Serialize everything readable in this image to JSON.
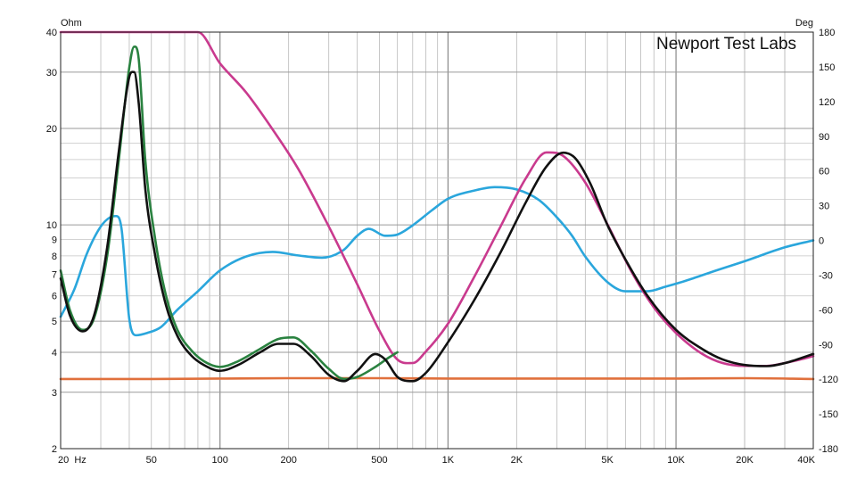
{
  "chart_data": {
    "type": "line",
    "watermark": "Newport Test Labs",
    "left_axis": {
      "unit": "Ohm",
      "scale": "log",
      "range": [
        2,
        40
      ],
      "ticks": [
        2,
        3,
        4,
        5,
        6,
        7,
        8,
        9,
        10,
        20,
        30,
        40
      ],
      "tick_labels": [
        "2",
        "3",
        "4",
        "5",
        "6",
        "7",
        "8",
        "9",
        "10",
        "20",
        "30",
        "40"
      ]
    },
    "right_axis": {
      "unit": "Deg",
      "scale": "linear",
      "range": [
        -180,
        180
      ],
      "ticks": [
        180,
        150,
        120,
        90,
        60,
        30,
        0,
        -30,
        -60,
        -90,
        -120,
        -150,
        -180
      ],
      "tick_labels": [
        "180",
        "150",
        "120",
        "90",
        "60",
        "30",
        "0",
        "-30",
        "-60",
        "-90",
        "-120",
        "-150",
        "-180"
      ]
    },
    "x_axis": {
      "scale": "log",
      "range": [
        20,
        40000
      ],
      "ticks": [
        20,
        50,
        100,
        200,
        500,
        1000,
        2000,
        5000,
        10000,
        20000,
        40000
      ],
      "tick_labels": [
        "20  Hz",
        "50",
        "100",
        "200",
        "500",
        "1K",
        "2K",
        "5K",
        "10K",
        "20K",
        "40K"
      ]
    },
    "grid": true,
    "legend": "none",
    "series": [
      {
        "color": "#111111",
        "axis": "left",
        "points": [
          [
            20,
            6.8
          ],
          [
            22,
            5.2
          ],
          [
            25,
            4.65
          ],
          [
            28,
            5.2
          ],
          [
            32,
            8.5
          ],
          [
            36,
            17
          ],
          [
            40,
            29
          ],
          [
            42,
            30
          ],
          [
            44,
            24
          ],
          [
            47,
            13
          ],
          [
            52,
            8
          ],
          [
            58,
            5.6
          ],
          [
            65,
            4.5
          ],
          [
            75,
            3.9
          ],
          [
            85,
            3.65
          ],
          [
            100,
            3.5
          ],
          [
            120,
            3.65
          ],
          [
            150,
            4.0
          ],
          [
            180,
            4.25
          ],
          [
            210,
            4.25
          ],
          [
            250,
            3.9
          ],
          [
            300,
            3.4
          ],
          [
            350,
            3.25
          ],
          [
            400,
            3.5
          ],
          [
            480,
            3.95
          ],
          [
            530,
            3.8
          ],
          [
            600,
            3.35
          ],
          [
            700,
            3.25
          ],
          [
            800,
            3.45
          ],
          [
            1000,
            4.3
          ],
          [
            1300,
            5.8
          ],
          [
            1700,
            8.2
          ],
          [
            2200,
            11.8
          ],
          [
            2700,
            15.2
          ],
          [
            3200,
            16.8
          ],
          [
            3600,
            16.2
          ],
          [
            4200,
            13.5
          ],
          [
            5000,
            10
          ],
          [
            6000,
            7.8
          ],
          [
            7500,
            6.0
          ],
          [
            10000,
            4.7
          ],
          [
            13000,
            4.1
          ],
          [
            16000,
            3.8
          ],
          [
            20000,
            3.65
          ],
          [
            25000,
            3.62
          ],
          [
            30000,
            3.7
          ],
          [
            40000,
            3.95
          ]
        ]
      },
      {
        "color": "#2a8240",
        "axis": "left",
        "points": [
          [
            20,
            7.2
          ],
          [
            22,
            5.4
          ],
          [
            25,
            4.7
          ],
          [
            28,
            5.1
          ],
          [
            32,
            8.0
          ],
          [
            36,
            16
          ],
          [
            40,
            31
          ],
          [
            42,
            36
          ],
          [
            44,
            33
          ],
          [
            47,
            16
          ],
          [
            52,
            9
          ],
          [
            58,
            6
          ],
          [
            65,
            4.7
          ],
          [
            75,
            4.05
          ],
          [
            85,
            3.75
          ],
          [
            100,
            3.6
          ],
          [
            120,
            3.75
          ],
          [
            150,
            4.1
          ],
          [
            180,
            4.4
          ],
          [
            210,
            4.45
          ],
          [
            250,
            4.05
          ],
          [
            300,
            3.55
          ],
          [
            350,
            3.3
          ],
          [
            400,
            3.35
          ],
          [
            480,
            3.6
          ],
          [
            550,
            3.85
          ],
          [
            600,
            4.0
          ]
        ]
      },
      {
        "color": "#c93a8e",
        "axis": "right",
        "points": [
          [
            20,
            180
          ],
          [
            50,
            180
          ],
          [
            80,
            180
          ],
          [
            100,
            153
          ],
          [
            130,
            128
          ],
          [
            170,
            96
          ],
          [
            220,
            62
          ],
          [
            300,
            12
          ],
          [
            400,
            -38
          ],
          [
            500,
            -78
          ],
          [
            600,
            -103
          ],
          [
            700,
            -106
          ],
          [
            800,
            -96
          ],
          [
            1000,
            -72
          ],
          [
            1300,
            -32
          ],
          [
            1700,
            12
          ],
          [
            2200,
            54
          ],
          [
            2700,
            76
          ],
          [
            3200,
            73
          ],
          [
            4000,
            50
          ],
          [
            5000,
            14
          ],
          [
            6500,
            -30
          ],
          [
            8000,
            -58
          ],
          [
            10000,
            -80
          ],
          [
            13000,
            -98
          ],
          [
            16000,
            -106
          ],
          [
            20000,
            -108.5
          ],
          [
            25000,
            -108.5
          ],
          [
            30000,
            -106
          ],
          [
            35000,
            -103
          ],
          [
            40000,
            -100
          ]
        ]
      },
      {
        "color": "#2aa6dc",
        "axis": "right",
        "points": [
          [
            20,
            -66
          ],
          [
            23,
            -42
          ],
          [
            26,
            -12
          ],
          [
            30,
            12
          ],
          [
            33,
            20
          ],
          [
            35,
            21
          ],
          [
            37,
            10
          ],
          [
            40,
            -68
          ],
          [
            43,
            -82
          ],
          [
            48,
            -80
          ],
          [
            55,
            -75
          ],
          [
            65,
            -60
          ],
          [
            80,
            -44
          ],
          [
            100,
            -26
          ],
          [
            130,
            -14
          ],
          [
            170,
            -10
          ],
          [
            220,
            -13
          ],
          [
            280,
            -15
          ],
          [
            350,
            -8
          ],
          [
            400,
            4
          ],
          [
            450,
            10
          ],
          [
            530,
            4
          ],
          [
            600,
            5
          ],
          [
            700,
            13
          ],
          [
            850,
            26
          ],
          [
            1000,
            36
          ],
          [
            1300,
            43
          ],
          [
            1600,
            46
          ],
          [
            2000,
            44
          ],
          [
            2500,
            35
          ],
          [
            3000,
            20
          ],
          [
            3500,
            4
          ],
          [
            4000,
            -14
          ],
          [
            5000,
            -36
          ],
          [
            6000,
            -44
          ],
          [
            7500,
            -44
          ],
          [
            9000,
            -40
          ],
          [
            11000,
            -35
          ],
          [
            15000,
            -26
          ],
          [
            20000,
            -18
          ],
          [
            30000,
            -6
          ],
          [
            40000,
            0
          ]
        ]
      },
      {
        "color": "#e0703c",
        "axis": "left",
        "points": [
          [
            20,
            3.3
          ],
          [
            50,
            3.3
          ],
          [
            100,
            3.31
          ],
          [
            200,
            3.32
          ],
          [
            500,
            3.32
          ],
          [
            1000,
            3.31
          ],
          [
            2000,
            3.31
          ],
          [
            5000,
            3.31
          ],
          [
            10000,
            3.31
          ],
          [
            20000,
            3.32
          ],
          [
            40000,
            3.3
          ]
        ]
      }
    ]
  }
}
